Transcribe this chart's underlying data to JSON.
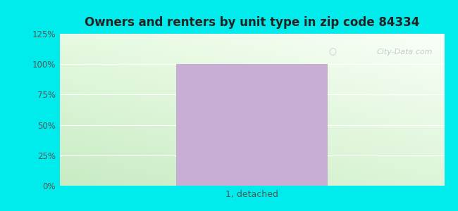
{
  "title": "Owners and renters by unit type in zip code 84334",
  "categories": [
    "1, detached"
  ],
  "values": [
    100
  ],
  "bar_color": "#c8aed4",
  "bar_width": 0.55,
  "ylim": [
    0,
    125
  ],
  "yticks": [
    0,
    25,
    50,
    75,
    100,
    125
  ],
  "ytick_labels": [
    "0%",
    "25%",
    "50%",
    "75%",
    "100%",
    "125%"
  ],
  "outer_bg": "#00ecec",
  "grid_color": "#dddddd",
  "title_color": "#222222",
  "tick_label_color": "#555555",
  "watermark_text": "City-Data.com",
  "watermark_color": "#c0c0cc",
  "bg_color_left": "#c8e8c0",
  "bg_color_right": "#f5fdf5",
  "bg_color_top": "#f8fff8",
  "bg_color_bottom": "#d0ecc8"
}
